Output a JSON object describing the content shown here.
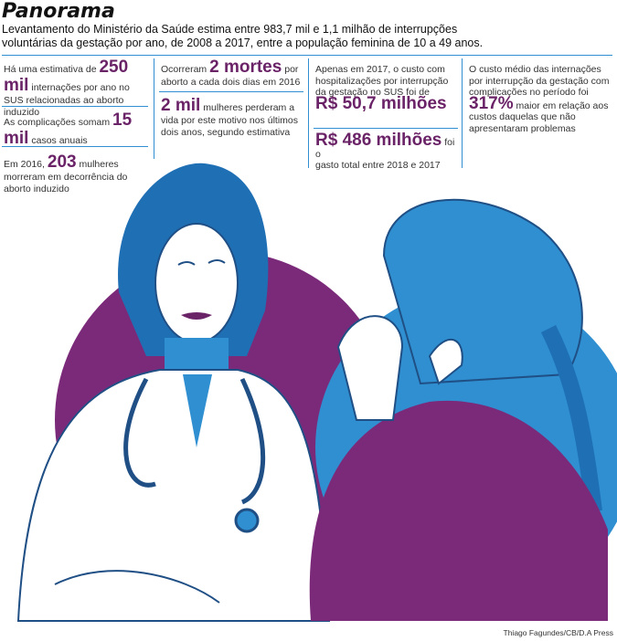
{
  "header": {
    "title": "Panorama",
    "subtitle": "Levantamento do Ministério da Saúde estima entre 983,7 mil e 1,1 milhão de interrupções voluntárias da gestação por ano, de 2008 a 2017, entre a população feminina de 10 a 49 anos."
  },
  "col1": {
    "s1_pre": "Há uma estimativa de",
    "s1_num": "250 mil",
    "s1_post": "internações por ano no SUS relacionadas ao aborto induzido",
    "s2_pre": "As complicações somam",
    "s2_num": "15 mil",
    "s2_post": "casos anuais",
    "s3_pre": "Em 2016,",
    "s3_num": "203",
    "s3_post": "mulheres morreram em decorrência do aborto induzido"
  },
  "col2": {
    "s1_pre": "Ocorreram",
    "s1_num": "2 mortes",
    "s1_post": "por aborto a cada dois dias em 2016",
    "s2_num": "2 mil",
    "s2_post": "mulheres perderam a vida por este motivo nos últimos dois anos, segundo estimativa"
  },
  "col3": {
    "s1_pre": "Apenas em 2017, o custo com hospitalizações por interrupção da gestação no SUS foi de",
    "s1_num": "R$ 50,7 milhões",
    "s2_num": "R$ 486 milhões",
    "s2_post1": "foi o",
    "s2_post2": "gasto total entre 2018 e 2017"
  },
  "col4": {
    "s1_pre": "O custo médio das internações por interrupção da gestação com complicações no período foi",
    "s1_num": "317%",
    "s1_post": "maior em relação aos custos daquelas que não apresentaram problemas"
  },
  "credit": "Thiago Fagundes/CB/D.A Press",
  "colors": {
    "accent": "#6b2368",
    "blue": "#2f8fd0",
    "purple": "#7b2a7a"
  }
}
